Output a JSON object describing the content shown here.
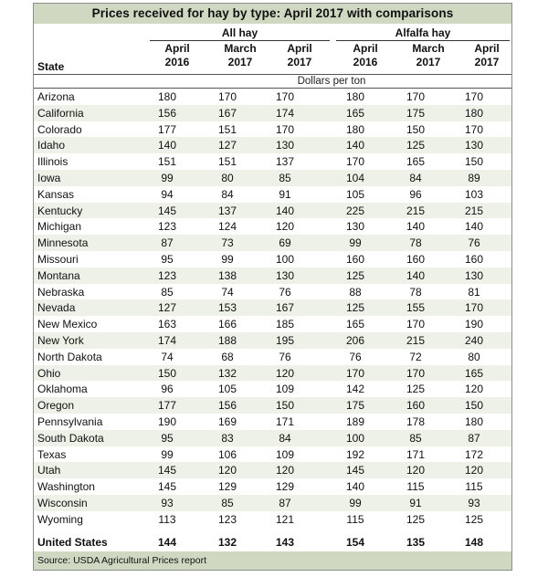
{
  "title": "Prices received for hay by type: April 2017 with comparisons",
  "groups": {
    "all": "All hay",
    "alfalfa": "Alfalfa hay"
  },
  "columns": [
    {
      "month": "April",
      "year": "2016"
    },
    {
      "month": "March",
      "year": "2017"
    },
    {
      "month": "April",
      "year": "2017"
    },
    {
      "month": "April",
      "year": "2016"
    },
    {
      "month": "March",
      "year": "2017"
    },
    {
      "month": "April",
      "year": "2017"
    }
  ],
  "state_header": "State",
  "units": "Dollars per ton",
  "rows": [
    {
      "state": "Arizona",
      "values": [
        "180",
        "170",
        "170",
        "180",
        "170",
        "170"
      ]
    },
    {
      "state": "California",
      "values": [
        "156",
        "167",
        "174",
        "165",
        "175",
        "180"
      ]
    },
    {
      "state": "Colorado",
      "values": [
        "177",
        "151",
        "170",
        "180",
        "150",
        "170"
      ]
    },
    {
      "state": "Idaho",
      "values": [
        "140",
        "127",
        "130",
        "140",
        "125",
        "130"
      ]
    },
    {
      "state": "Illinois",
      "values": [
        "151",
        "151",
        "137",
        "170",
        "165",
        "150"
      ]
    },
    {
      "state": "Iowa",
      "values": [
        "99",
        "80",
        "85",
        "104",
        "84",
        "89"
      ]
    },
    {
      "state": "Kansas",
      "values": [
        "94",
        "84",
        "91",
        "105",
        "96",
        "103"
      ]
    },
    {
      "state": "Kentucky",
      "values": [
        "145",
        "137",
        "140",
        "225",
        "215",
        "215"
      ]
    },
    {
      "state": "Michigan",
      "values": [
        "123",
        "124",
        "120",
        "130",
        "140",
        "140"
      ]
    },
    {
      "state": "Minnesota",
      "values": [
        "87",
        "73",
        "69",
        "99",
        "78",
        "76"
      ]
    },
    {
      "state": "Missouri",
      "values": [
        "95",
        "99",
        "100",
        "160",
        "160",
        "160"
      ]
    },
    {
      "state": "Montana",
      "values": [
        "123",
        "138",
        "130",
        "125",
        "140",
        "130"
      ]
    },
    {
      "state": "Nebraska",
      "values": [
        "85",
        "74",
        "76",
        "88",
        "78",
        "81"
      ]
    },
    {
      "state": "Nevada",
      "values": [
        "127",
        "153",
        "167",
        "125",
        "155",
        "170"
      ]
    },
    {
      "state": "New Mexico",
      "values": [
        "163",
        "166",
        "185",
        "165",
        "170",
        "190"
      ]
    },
    {
      "state": "New York",
      "values": [
        "174",
        "188",
        "195",
        "206",
        "215",
        "240"
      ]
    },
    {
      "state": "North Dakota",
      "values": [
        "74",
        "68",
        "76",
        "76",
        "72",
        "80"
      ]
    },
    {
      "state": "Ohio",
      "values": [
        "150",
        "132",
        "120",
        "170",
        "170",
        "165"
      ]
    },
    {
      "state": "Oklahoma",
      "values": [
        "96",
        "105",
        "109",
        "142",
        "125",
        "120"
      ]
    },
    {
      "state": "Oregon",
      "values": [
        "177",
        "156",
        "150",
        "175",
        "160",
        "150"
      ]
    },
    {
      "state": "Pennsylvania",
      "values": [
        "190",
        "169",
        "171",
        "189",
        "178",
        "180"
      ]
    },
    {
      "state": "South Dakota",
      "values": [
        "95",
        "83",
        "84",
        "100",
        "85",
        "87"
      ]
    },
    {
      "state": "Texas",
      "values": [
        "99",
        "106",
        "109",
        "192",
        "171",
        "172"
      ]
    },
    {
      "state": "Utah",
      "values": [
        "145",
        "120",
        "120",
        "145",
        "120",
        "120"
      ]
    },
    {
      "state": "Washington",
      "values": [
        "145",
        "129",
        "129",
        "140",
        "115",
        "115"
      ]
    },
    {
      "state": "Wisconsin",
      "values": [
        "93",
        "85",
        "87",
        "99",
        "91",
        "93"
      ]
    },
    {
      "state": "Wyoming",
      "values": [
        "113",
        "123",
        "121",
        "115",
        "125",
        "125"
      ]
    }
  ],
  "total": {
    "state": "United States",
    "values": [
      "144",
      "132",
      "143",
      "154",
      "135",
      "148"
    ]
  },
  "source": "Source: USDA Agricultural Prices report",
  "colors": {
    "header_band": "#cfd9c2",
    "stripe": "#edf1e7",
    "border": "#8c8c8c"
  }
}
